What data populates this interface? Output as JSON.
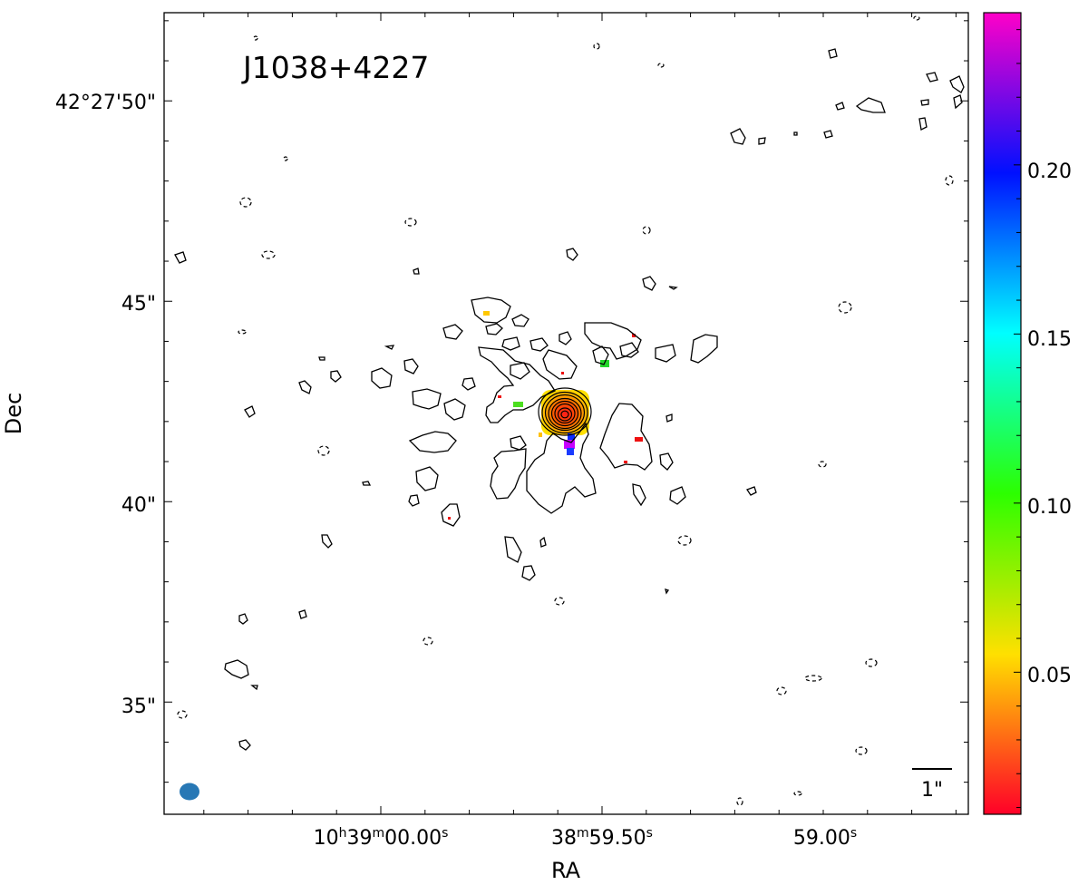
{
  "chart_data": {
    "type": "heatmap",
    "title": "J1038+4227",
    "xlabel": "RA",
    "ylabel": "Dec",
    "x_ticks": [
      {
        "label": "10ʰ39ᵐ00.00ˢ",
        "sub": [
          "10",
          "h",
          "39",
          "m",
          "00.00",
          "s"
        ]
      },
      {
        "label": "38ᵐ59.50ˢ",
        "sub": [
          "38",
          "m",
          "59.50",
          "s"
        ]
      },
      {
        "label": "59.00ˢ",
        "sub": [
          "59.00",
          "s"
        ]
      }
    ],
    "y_ticks": [
      {
        "label": "42°27'50\"",
        "dec_arcsec": 50
      },
      {
        "label": "45\"",
        "dec_arcsec": 45
      },
      {
        "label": "40\"",
        "dec_arcsec": 40
      },
      {
        "label": "35\"",
        "dec_arcsec": 35
      }
    ],
    "dec_range_arcsec": [
      32.2,
      52.2
    ],
    "colorbar": {
      "range": [
        0.008,
        0.245
      ],
      "ticks": [
        {
          "label": "0.05",
          "value": 0.05
        },
        {
          "label": "0.10",
          "value": 0.1
        },
        {
          "label": "0.15",
          "value": 0.15
        },
        {
          "label": "0.20",
          "value": 0.2
        }
      ],
      "colormap": "gist_rainbow (red to magenta)"
    },
    "scalebar_label": "1\"",
    "contours": "black; solid positive, dashed negative",
    "beam_color": "#2878b5"
  }
}
